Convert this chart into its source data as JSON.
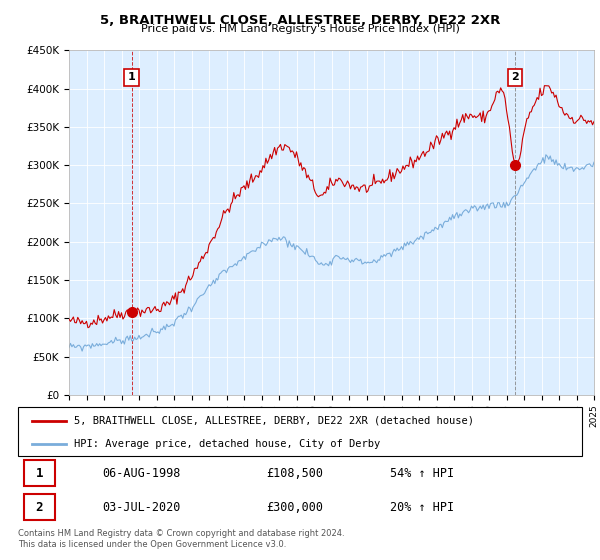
{
  "title": "5, BRAITHWELL CLOSE, ALLESTREE, DERBY, DE22 2XR",
  "subtitle": "Price paid vs. HM Land Registry's House Price Index (HPI)",
  "legend_line1": "5, BRAITHWELL CLOSE, ALLESTREE, DERBY, DE22 2XR (detached house)",
  "legend_line2": "HPI: Average price, detached house, City of Derby",
  "point1_label": "1",
  "point1_date": "06-AUG-1998",
  "point1_price": "£108,500",
  "point1_hpi": "54% ↑ HPI",
  "point2_label": "2",
  "point2_date": "03-JUL-2020",
  "point2_price": "£300,000",
  "point2_hpi": "20% ↑ HPI",
  "footer": "Contains HM Land Registry data © Crown copyright and database right 2024.\nThis data is licensed under the Open Government Licence v3.0.",
  "red_color": "#cc0000",
  "blue_color": "#7aaddb",
  "bg_color": "#ddeeff",
  "ylim": [
    0,
    450000
  ],
  "yticks": [
    0,
    50000,
    100000,
    150000,
    200000,
    250000,
    300000,
    350000,
    400000,
    450000
  ],
  "ytick_labels": [
    "£0",
    "£50K",
    "£100K",
    "£150K",
    "£200K",
    "£250K",
    "£300K",
    "£350K",
    "£400K",
    "£450K"
  ],
  "point1_x": 1998.58,
  "point1_y": 108500,
  "point2_x": 2020.5,
  "point2_y": 300000,
  "xlim_start": 1995,
  "xlim_end": 2025
}
